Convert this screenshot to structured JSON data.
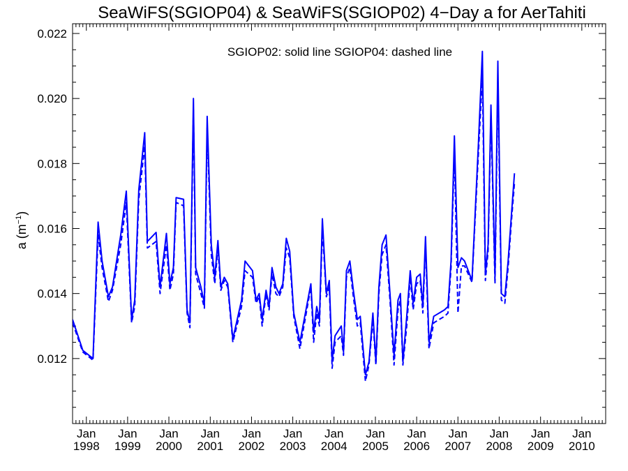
{
  "chart_data": {
    "type": "line",
    "title": "SeaWiFS(SGIOP04) & SeaWiFS(SGIOP02) 4−Day a for AerTahiti",
    "annotation": "SGIOP02: solid line   SGIOP04: dashed line",
    "ylabel": "a (m",
    "ylabel_sup": "−1",
    "ylabel_close": ")",
    "ylim": [
      0.01,
      0.0223
    ],
    "xlim": [
      "1997-09-01",
      "2010-07-31"
    ],
    "y_ticks": [
      "0.012",
      "0.014",
      "0.016",
      "0.018",
      "0.020",
      "0.022"
    ],
    "x_ticks": [
      {
        "month": "Jan",
        "year": "1998"
      },
      {
        "month": "Jan",
        "year": "1999"
      },
      {
        "month": "Jan",
        "year": "2000"
      },
      {
        "month": "Jan",
        "year": "2001"
      },
      {
        "month": "Jan",
        "year": "2002"
      },
      {
        "month": "Jan",
        "year": "2003"
      },
      {
        "month": "Jan",
        "year": "2004"
      },
      {
        "month": "Jan",
        "year": "2005"
      },
      {
        "month": "Jan",
        "year": "2006"
      },
      {
        "month": "Jan",
        "year": "2007"
      },
      {
        "month": "Jan",
        "year": "2008"
      },
      {
        "month": "Jan",
        "year": "2009"
      },
      {
        "month": "Jan",
        "year": "2010"
      }
    ],
    "grid": false,
    "line_color": "#0000ff",
    "series": [
      {
        "name": "SGIOP02",
        "style": "solid",
        "points": [
          [
            "1997-09-01",
            0.0132
          ],
          [
            "1997-12-01",
            0.01225
          ],
          [
            "1998-03-01",
            0.012
          ],
          [
            "1998-04-15",
            0.0162
          ],
          [
            "1998-05-20",
            0.015
          ],
          [
            "1998-07-15",
            0.0139
          ],
          [
            "1998-08-20",
            0.0142
          ],
          [
            "1998-11-01",
            0.0158
          ],
          [
            "1998-12-20",
            0.01715
          ],
          [
            "1999-02-05",
            0.0132
          ],
          [
            "1999-03-05",
            0.0138
          ],
          [
            "1999-04-10",
            0.0172
          ],
          [
            "1999-06-01",
            0.01895
          ],
          [
            "1999-06-25",
            0.0156
          ],
          [
            "1999-09-10",
            0.01588
          ],
          [
            "1999-10-15",
            0.0142
          ],
          [
            "1999-12-10",
            0.01585
          ],
          [
            "2000-01-10",
            0.0143
          ],
          [
            "2000-02-10",
            0.0148
          ],
          [
            "2000-03-05",
            0.01695
          ],
          [
            "2000-05-10",
            0.0169
          ],
          [
            "2000-06-10",
            0.0135
          ],
          [
            "2000-07-05",
            0.0131
          ],
          [
            "2000-08-05",
            0.02
          ],
          [
            "2000-08-25",
            0.0148
          ],
          [
            "2000-10-10",
            0.0142
          ],
          [
            "2000-11-10",
            0.0137
          ],
          [
            "2000-12-05",
            0.01945
          ],
          [
            "2001-01-10",
            0.0155
          ],
          [
            "2001-02-10",
            0.0145
          ],
          [
            "2001-03-10",
            0.01563
          ],
          [
            "2001-04-05",
            0.0142
          ],
          [
            "2001-05-05",
            0.0145
          ],
          [
            "2001-06-05",
            0.0143
          ],
          [
            "2001-07-20",
            0.0126
          ],
          [
            "2001-10-05",
            0.0138
          ],
          [
            "2001-11-05",
            0.015
          ],
          [
            "2002-01-10",
            0.0147
          ],
          [
            "2002-02-10",
            0.0138
          ],
          [
            "2002-03-10",
            0.014
          ],
          [
            "2002-04-05",
            0.0132
          ],
          [
            "2002-05-10",
            0.0141
          ],
          [
            "2002-06-05",
            0.0136
          ],
          [
            "2002-07-01",
            0.0148
          ],
          [
            "2002-08-05",
            0.0142
          ],
          [
            "2002-09-01",
            0.014
          ],
          [
            "2002-10-05",
            0.0143
          ],
          [
            "2002-11-05",
            0.0157
          ],
          [
            "2002-12-05",
            0.0153
          ],
          [
            "2003-01-10",
            0.0134
          ],
          [
            "2003-03-05",
            0.0125
          ],
          [
            "2003-06-10",
            0.0143
          ],
          [
            "2003-07-05",
            0.0128
          ],
          [
            "2003-08-01",
            0.0136
          ],
          [
            "2003-08-25",
            0.0132
          ],
          [
            "2003-09-20",
            0.0163
          ],
          [
            "2003-10-25",
            0.014
          ],
          [
            "2003-11-20",
            0.0144
          ],
          [
            "2003-12-15",
            0.01195
          ],
          [
            "2004-01-10",
            0.0127
          ],
          [
            "2004-03-05",
            0.013
          ],
          [
            "2004-03-25",
            0.0122
          ],
          [
            "2004-04-20",
            0.0147
          ],
          [
            "2004-05-20",
            0.015
          ],
          [
            "2004-06-20",
            0.0141
          ],
          [
            "2004-07-25",
            0.0132
          ],
          [
            "2004-08-20",
            0.0133
          ],
          [
            "2004-10-05",
            0.0115
          ],
          [
            "2004-11-05",
            0.0119
          ],
          [
            "2004-12-10",
            0.0134
          ],
          [
            "2005-01-05",
            0.0119
          ],
          [
            "2005-02-01",
            0.0142
          ],
          [
            "2005-03-01",
            0.0155
          ],
          [
            "2005-04-05",
            0.0158
          ],
          [
            "2005-05-10",
            0.014
          ],
          [
            "2005-06-15",
            0.0121
          ],
          [
            "2005-07-20",
            0.0138
          ],
          [
            "2005-08-10",
            0.014
          ],
          [
            "2005-09-01",
            0.0119
          ],
          [
            "2005-10-05",
            0.0133
          ],
          [
            "2005-11-05",
            0.0147
          ],
          [
            "2005-12-01",
            0.0137
          ],
          [
            "2006-01-01",
            0.0145
          ],
          [
            "2006-02-01",
            0.0146
          ],
          [
            "2006-02-25",
            0.0136
          ],
          [
            "2006-03-20",
            0.01575
          ],
          [
            "2006-04-20",
            0.0125
          ],
          [
            "2006-06-01",
            0.0133
          ],
          [
            "2006-09-05",
            0.0135
          ],
          [
            "2006-10-05",
            0.0136
          ],
          [
            "2006-11-01",
            0.015
          ],
          [
            "2006-12-01",
            0.01885
          ],
          [
            "2007-01-01",
            0.0148
          ],
          [
            "2007-02-01",
            0.0151
          ],
          [
            "2007-03-01",
            0.015
          ],
          [
            "2007-05-05",
            0.0144
          ],
          [
            "2007-07-01",
            0.0186
          ],
          [
            "2007-08-05",
            0.02145
          ],
          [
            "2007-09-01",
            0.0146
          ],
          [
            "2007-09-25",
            0.0155
          ],
          [
            "2007-10-20",
            0.0198
          ],
          [
            "2007-11-25",
            0.0145
          ],
          [
            "2007-12-20",
            0.02115
          ],
          [
            "2008-01-20",
            0.014
          ],
          [
            "2008-02-20",
            0.0139
          ],
          [
            "2008-03-20",
            0.015
          ],
          [
            "2008-04-20",
            0.0165
          ],
          [
            "2008-05-15",
            0.0177
          ]
        ]
      },
      {
        "name": "SGIOP04",
        "style": "dashed",
        "points": [
          [
            "1997-09-01",
            0.0131
          ],
          [
            "1997-12-01",
            0.0122
          ],
          [
            "1998-03-01",
            0.01195
          ],
          [
            "1998-04-15",
            0.0158
          ],
          [
            "1998-05-20",
            0.0148
          ],
          [
            "1998-07-15",
            0.01375
          ],
          [
            "1998-08-20",
            0.0141
          ],
          [
            "1998-11-01",
            0.0155
          ],
          [
            "1998-12-20",
            0.0168
          ],
          [
            "1999-02-05",
            0.0131
          ],
          [
            "1999-03-05",
            0.0136
          ],
          [
            "1999-04-10",
            0.0169
          ],
          [
            "1999-06-01",
            0.01855
          ],
          [
            "1999-06-25",
            0.0154
          ],
          [
            "1999-09-10",
            0.0156
          ],
          [
            "1999-10-15",
            0.014
          ],
          [
            "1999-12-10",
            0.0155
          ],
          [
            "2000-01-10",
            0.0141
          ],
          [
            "2000-02-10",
            0.0146
          ],
          [
            "2000-03-05",
            0.0168
          ],
          [
            "2000-05-10",
            0.0167
          ],
          [
            "2000-06-10",
            0.0134
          ],
          [
            "2000-07-05",
            0.01295
          ],
          [
            "2000-08-05",
            0.0197
          ],
          [
            "2000-08-25",
            0.0146
          ],
          [
            "2000-10-10",
            0.014
          ],
          [
            "2000-11-10",
            0.01355
          ],
          [
            "2000-12-05",
            0.0191
          ],
          [
            "2001-01-10",
            0.0152
          ],
          [
            "2001-02-10",
            0.0143
          ],
          [
            "2001-03-10",
            0.0154
          ],
          [
            "2001-04-05",
            0.0141
          ],
          [
            "2001-05-05",
            0.0144
          ],
          [
            "2001-06-05",
            0.0142
          ],
          [
            "2001-07-20",
            0.0125
          ],
          [
            "2001-10-05",
            0.0136
          ],
          [
            "2001-11-05",
            0.0147
          ],
          [
            "2002-01-10",
            0.0145
          ],
          [
            "2002-02-10",
            0.0137
          ],
          [
            "2002-03-10",
            0.0139
          ],
          [
            "2002-04-05",
            0.013
          ],
          [
            "2002-05-10",
            0.014
          ],
          [
            "2002-06-05",
            0.0135
          ],
          [
            "2002-07-01",
            0.0146
          ],
          [
            "2002-08-05",
            0.014
          ],
          [
            "2002-09-01",
            0.0139
          ],
          [
            "2002-10-05",
            0.0142
          ],
          [
            "2002-11-05",
            0.0154
          ],
          [
            "2002-12-05",
            0.0151
          ],
          [
            "2003-01-10",
            0.0133
          ],
          [
            "2003-03-05",
            0.0123
          ],
          [
            "2003-06-10",
            0.0142
          ],
          [
            "2003-07-05",
            0.0125
          ],
          [
            "2003-08-01",
            0.0134
          ],
          [
            "2003-08-25",
            0.013
          ],
          [
            "2003-09-20",
            0.016
          ],
          [
            "2003-10-25",
            0.0139
          ],
          [
            "2003-11-20",
            0.0142
          ],
          [
            "2003-12-15",
            0.0117
          ],
          [
            "2004-01-10",
            0.0125
          ],
          [
            "2004-03-05",
            0.0127
          ],
          [
            "2004-03-25",
            0.0121
          ],
          [
            "2004-04-20",
            0.0145
          ],
          [
            "2004-05-20",
            0.0148
          ],
          [
            "2004-06-20",
            0.0139
          ],
          [
            "2004-07-25",
            0.013
          ],
          [
            "2004-08-20",
            0.0131
          ],
          [
            "2004-10-05",
            0.0113
          ],
          [
            "2004-11-05",
            0.0118
          ],
          [
            "2004-12-10",
            0.0132
          ],
          [
            "2005-01-05",
            0.0118
          ],
          [
            "2005-02-01",
            0.014
          ],
          [
            "2005-03-01",
            0.0152
          ],
          [
            "2005-04-05",
            0.0155
          ],
          [
            "2005-05-10",
            0.0138
          ],
          [
            "2005-06-15",
            0.0118
          ],
          [
            "2005-07-20",
            0.0135
          ],
          [
            "2005-08-10",
            0.0138
          ],
          [
            "2005-09-01",
            0.0118
          ],
          [
            "2005-10-05",
            0.013
          ],
          [
            "2005-11-05",
            0.0145
          ],
          [
            "2005-12-01",
            0.0135
          ],
          [
            "2006-01-01",
            0.0143
          ],
          [
            "2006-02-01",
            0.0144
          ],
          [
            "2006-02-25",
            0.0134
          ],
          [
            "2006-03-20",
            0.0155
          ],
          [
            "2006-04-20",
            0.0123
          ],
          [
            "2006-06-01",
            0.0131
          ],
          [
            "2006-09-05",
            0.0133
          ],
          [
            "2006-10-05",
            0.0134
          ],
          [
            "2006-11-01",
            0.0148
          ],
          [
            "2006-12-01",
            0.0184
          ],
          [
            "2007-01-01",
            0.0134
          ],
          [
            "2007-02-01",
            0.01485
          ],
          [
            "2007-03-01",
            0.01485
          ],
          [
            "2007-05-05",
            0.01435
          ],
          [
            "2007-07-01",
            0.0183
          ],
          [
            "2007-08-05",
            0.0207
          ],
          [
            "2007-09-01",
            0.0144
          ],
          [
            "2007-09-25",
            0.0153
          ],
          [
            "2007-10-20",
            0.0195
          ],
          [
            "2007-11-25",
            0.0143
          ],
          [
            "2007-12-20",
            0.0206
          ],
          [
            "2008-01-20",
            0.0138
          ],
          [
            "2008-02-20",
            0.0137
          ],
          [
            "2008-03-20",
            0.0148
          ],
          [
            "2008-04-20",
            0.0163
          ],
          [
            "2008-05-15",
            0.0174
          ]
        ]
      }
    ]
  }
}
